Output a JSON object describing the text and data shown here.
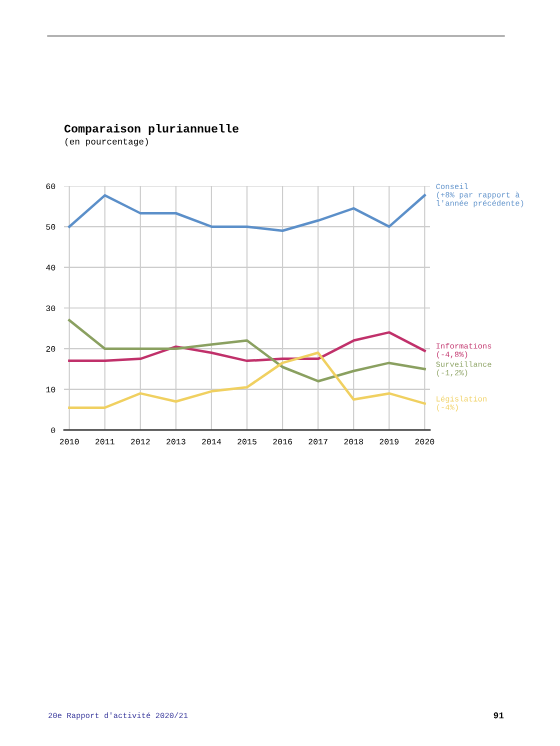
{
  "chart_data": {
    "type": "line",
    "title": "Comparaison pluriannuelle",
    "subtitle": "(en pourcentage)",
    "categories": [
      "2010",
      "2011",
      "2012",
      "2013",
      "2014",
      "2015",
      "2016",
      "2017",
      "2018",
      "2019",
      "2020"
    ],
    "series": [
      {
        "name": "Conseil\n(+8% par rapport à\nl'année précédente)",
        "color": "#5b8fc9",
        "values": [
          50,
          57.7,
          53.3,
          53.3,
          50,
          50,
          49,
          51.5,
          54.5,
          50,
          57.7
        ]
      },
      {
        "name": "Informations\n(-4,8%)",
        "color": "#c0306a",
        "values": [
          17,
          17,
          17.5,
          20.5,
          19,
          17,
          17.5,
          17.5,
          22,
          24,
          19.5
        ]
      },
      {
        "name": "Surveillance\n(-1,2%)",
        "color": "#8aa060",
        "values": [
          27,
          20,
          20,
          20,
          21,
          22,
          15.5,
          12,
          14.5,
          16.5,
          15
        ]
      },
      {
        "name": "Législation\n(-4%)",
        "color": "#f0d060",
        "values": [
          5.5,
          5.5,
          9,
          7,
          9.5,
          10.5,
          16.5,
          19,
          7.5,
          9,
          6.5
        ]
      }
    ],
    "ylim": [
      0,
      60
    ],
    "yticks": [
      0,
      10,
      20,
      30,
      40,
      50,
      60
    ],
    "grid": true,
    "marker": "none",
    "line_style": "solid",
    "legend": false,
    "annotations": [
      "20e Rapport d'activité 2020/21",
      "91"
    ]
  }
}
